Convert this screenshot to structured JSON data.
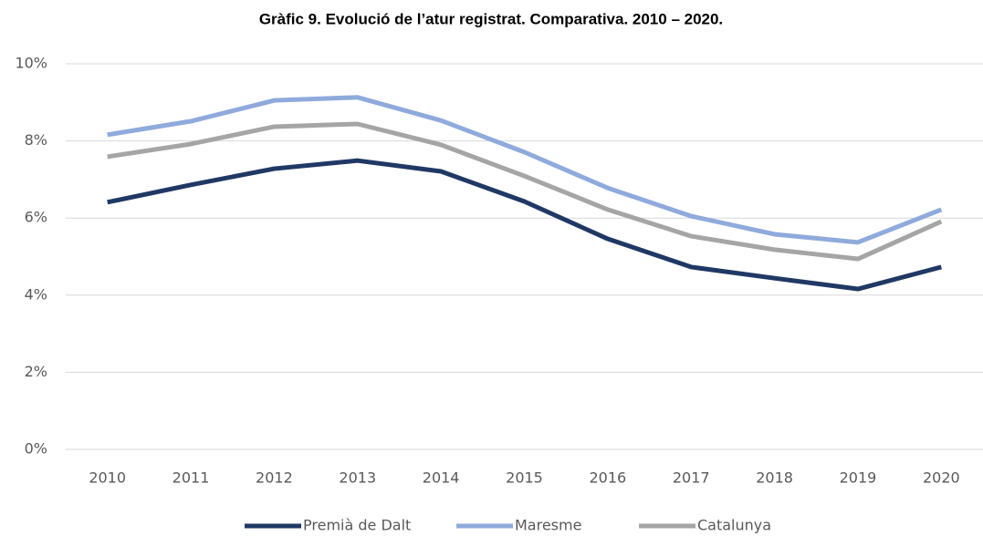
{
  "chart_data": {
    "type": "line",
    "title": "Gràfic 9. Evolució de l’atur registrat. Comparativa. 2010 – 2020.",
    "categories": [
      "2010",
      "2011",
      "2012",
      "2013",
      "2014",
      "2015",
      "2016",
      "2017",
      "2018",
      "2019",
      "2020"
    ],
    "series": [
      {
        "name": "Premià de Dalt",
        "color": "#203864",
        "values": [
          6.41,
          6.86,
          7.28,
          7.49,
          7.21,
          6.43,
          5.46,
          4.73,
          4.44,
          4.16,
          4.73
        ]
      },
      {
        "name": "Maresme",
        "color": "#8faadc",
        "values": [
          8.16,
          8.51,
          9.05,
          9.13,
          8.53,
          7.71,
          6.78,
          6.05,
          5.58,
          5.37,
          6.22
        ]
      },
      {
        "name": "Catalunya",
        "color": "#a5a5a5",
        "values": [
          7.59,
          7.92,
          8.37,
          8.44,
          7.9,
          7.09,
          6.22,
          5.53,
          5.18,
          4.94,
          5.91
        ]
      }
    ],
    "ylim": [
      0,
      10
    ],
    "yticks": [
      {
        "value": 0,
        "label": "0%"
      },
      {
        "value": 2,
        "label": "2%"
      },
      {
        "value": 4,
        "label": "4%"
      },
      {
        "value": 6,
        "label": "6%"
      },
      {
        "value": 8,
        "label": "8%"
      },
      {
        "value": 10,
        "label": "10%"
      }
    ],
    "grid": true,
    "legend": "bottom"
  }
}
